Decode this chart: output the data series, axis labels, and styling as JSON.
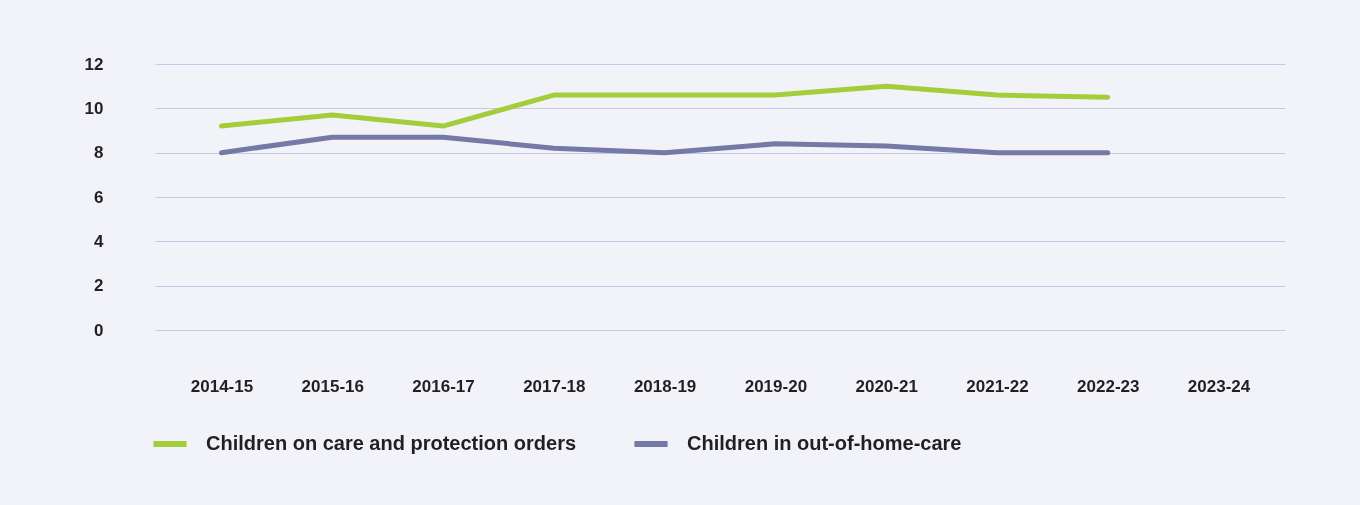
{
  "chart_data": {
    "type": "line",
    "categories": [
      "2014-15",
      "2015-16",
      "2016-17",
      "2017-18",
      "2018-19",
      "2019-20",
      "2020-21",
      "2021-22",
      "2022-23",
      "2023-24"
    ],
    "series": [
      {
        "name": "Children on care and protection orders",
        "color": "#a3cd3a",
        "values": [
          9.2,
          9.7,
          9.2,
          10.6,
          10.6,
          10.6,
          11.0,
          10.6,
          10.5,
          null
        ]
      },
      {
        "name": "Children in out-of-home-care",
        "color": "#7479a5",
        "values": [
          8.0,
          8.7,
          8.7,
          8.2,
          8.0,
          8.4,
          8.3,
          8.0,
          8.0,
          null
        ]
      }
    ],
    "ylim": [
      0,
      12
    ],
    "yticks": [
      0,
      2,
      4,
      6,
      8,
      10,
      12
    ],
    "grid": "y",
    "legend": "bottom",
    "marker": "none",
    "line_style": "solid"
  }
}
